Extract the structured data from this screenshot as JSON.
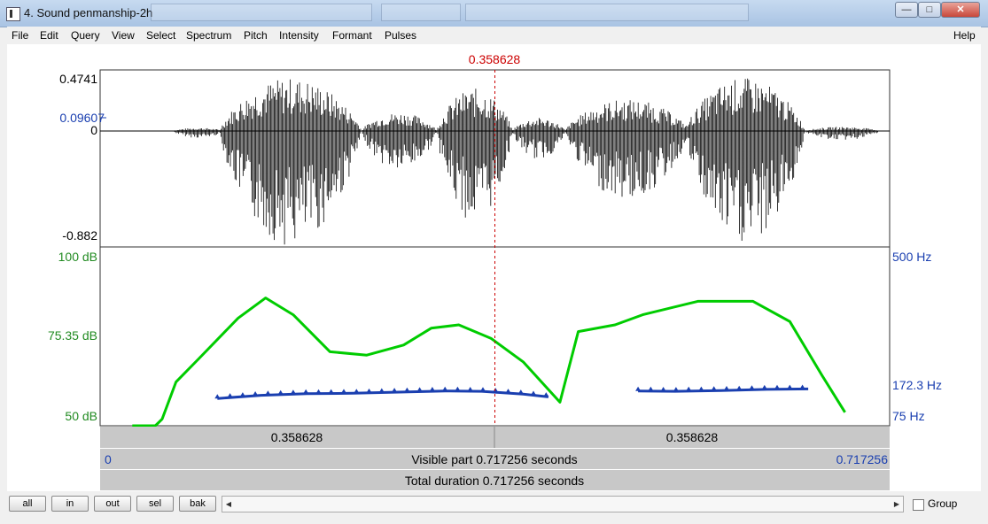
{
  "window": {
    "title": "4. Sound penmanship-2h",
    "minimize": "—",
    "maximize": "□",
    "close": "✕"
  },
  "menu": [
    "File",
    "Edit",
    "Query",
    "View",
    "Select",
    "Spectrum",
    "Pitch",
    "Intensity",
    "Formant",
    "Pulses"
  ],
  "help": "Help",
  "cursor": {
    "label": "0.358628",
    "time": 0.358628,
    "color": "#cc0000"
  },
  "waveform": {
    "max_label": "0.4741",
    "level_label": "0.09607",
    "zero_label": "0",
    "min_label": "-0.882"
  },
  "intensity": {
    "top_label": "100 dB",
    "mid_label": "75.35 dB",
    "bottom_label": "50 dB",
    "color": "#00cc00",
    "points": [
      [
        0.07,
        50
      ],
      [
        0.12,
        50
      ],
      [
        0.135,
        52
      ],
      [
        0.165,
        63
      ],
      [
        0.215,
        70
      ],
      [
        0.3,
        82
      ],
      [
        0.36,
        88
      ],
      [
        0.42,
        83
      ],
      [
        0.5,
        72
      ],
      [
        0.58,
        71
      ],
      [
        0.66,
        74
      ],
      [
        0.72,
        79
      ],
      [
        0.78,
        80
      ],
      [
        0.85,
        76
      ],
      [
        0.92,
        69
      ],
      [
        1.0,
        57
      ],
      [
        1.04,
        78
      ],
      [
        1.12,
        80
      ],
      [
        1.18,
        83
      ],
      [
        1.3,
        87
      ],
      [
        1.42,
        87
      ],
      [
        1.5,
        81
      ],
      [
        1.57,
        65
      ],
      [
        1.62,
        54
      ]
    ]
  },
  "pitch": {
    "top_label": "500 Hz",
    "mid_label": "172.3 Hz",
    "bottom_label": "75 Hz",
    "color": "#1a3fb0",
    "segments": [
      [
        [
          0.255,
          144
        ],
        [
          0.35,
          152
        ],
        [
          0.45,
          156
        ],
        [
          0.55,
          157
        ],
        [
          0.65,
          160
        ],
        [
          0.75,
          163
        ],
        [
          0.83,
          162
        ],
        [
          0.92,
          155
        ],
        [
          0.975,
          148
        ]
      ],
      [
        [
          1.17,
          163
        ],
        [
          1.25,
          162
        ],
        [
          1.35,
          164
        ],
        [
          1.45,
          167
        ],
        [
          1.54,
          168
        ]
      ]
    ]
  },
  "selection": {
    "left_label": "0.358628",
    "right_label": "0.358628"
  },
  "visible": {
    "start_label": "0",
    "label": "Visible part 0.717256 seconds",
    "end_label": "0.717256"
  },
  "total": {
    "label": "Total duration 0.717256 seconds"
  },
  "buttons": [
    "all",
    "in",
    "out",
    "sel",
    "bak"
  ],
  "group_label": "Group"
}
